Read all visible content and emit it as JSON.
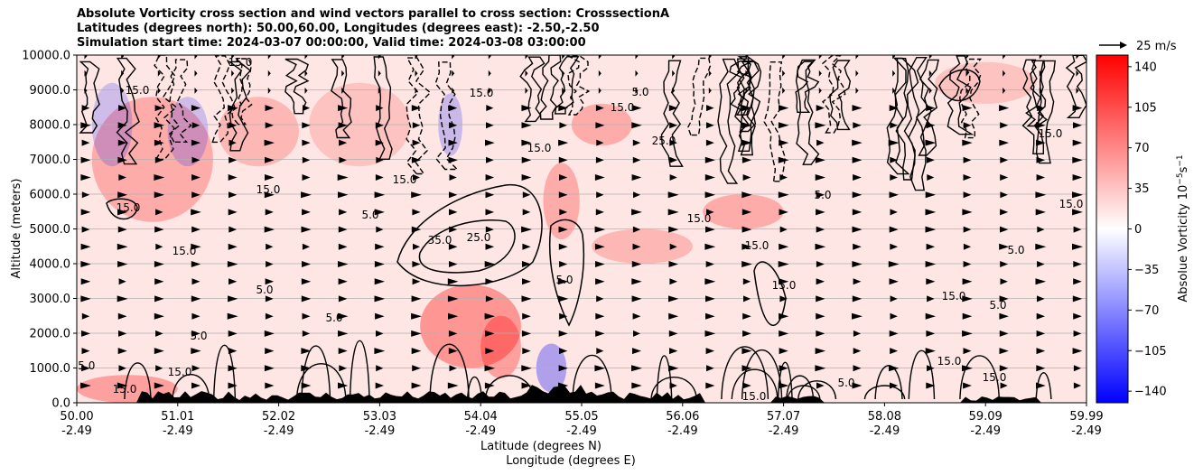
{
  "title_lines": [
    "Absolute Vorticity cross section and wind vectors parallel to cross section: CrosssectionA",
    "Latitudes (degrees north): 50.00,60.00, Longitudes (degrees east): -2.50,-2.50",
    "Simulation start time: 2024-03-07 00:00:00, Valid time: 2024-03-08 03:00:00"
  ],
  "colors": {
    "positive": "#ff0000",
    "negative": "#0000ff",
    "contour": "#000000"
  },
  "chart_data": {
    "type": "contour",
    "ylabel": "Altitude (meters)",
    "xlabel_lines": [
      "Latitude (degrees N)",
      "Longitude (degrees E)"
    ],
    "ylim": [
      0,
      10000
    ],
    "y_ticks": [
      "0.0",
      "1000.0",
      "2000.0",
      "3000.0",
      "4000.0",
      "5000.0",
      "6000.0",
      "7000.0",
      "8000.0",
      "9000.0",
      "10000.0"
    ],
    "x_ticks": [
      {
        "lat": "50.00",
        "lon": "-2.49"
      },
      {
        "lat": "51.01",
        "lon": "-2.49"
      },
      {
        "lat": "52.02",
        "lon": "-2.49"
      },
      {
        "lat": "53.03",
        "lon": "-2.49"
      },
      {
        "lat": "54.04",
        "lon": "-2.49"
      },
      {
        "lat": "55.05",
        "lon": "-2.49"
      },
      {
        "lat": "56.06",
        "lon": "-2.49"
      },
      {
        "lat": "57.07",
        "lon": "-2.49"
      },
      {
        "lat": "58.08",
        "lon": "-2.49"
      },
      {
        "lat": "59.09",
        "lon": "-2.49"
      },
      {
        "lat": "59.99",
        "lon": "-2.49"
      }
    ],
    "grid": "horizontal",
    "contour_levels": [
      "5.0",
      "15.0",
      "25.0",
      "35.0"
    ],
    "colorbar": {
      "label": "Absolue Vorticity 10",
      "label_sup": "−5",
      "label_unit": "s",
      "label_unit_sup": "−1",
      "range": [
        -150,
        150
      ],
      "ticks": [
        "140",
        "105",
        "70",
        "35",
        "0",
        "−35",
        "−70",
        "−105",
        "−140"
      ],
      "tick_values": [
        140,
        105,
        70,
        35,
        0,
        -35,
        -70,
        -105,
        -140
      ]
    },
    "quiver_key": "25 m/s",
    "terrain": "black"
  }
}
